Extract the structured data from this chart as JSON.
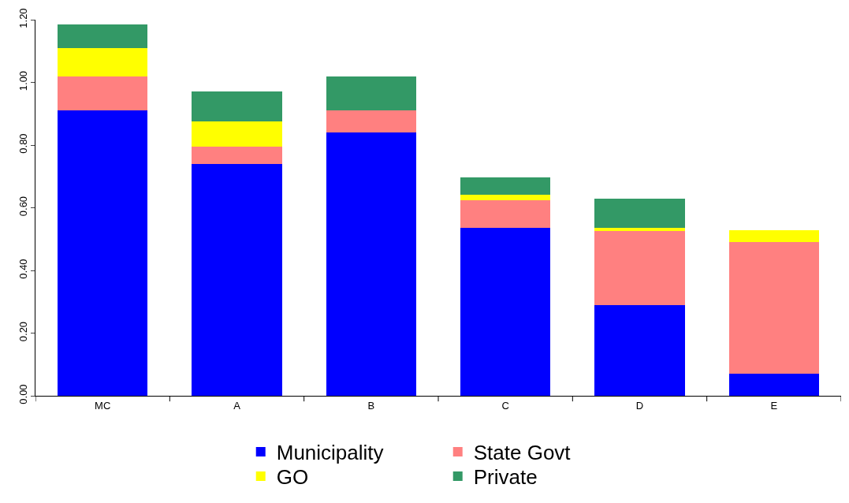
{
  "chart_data": {
    "type": "bar",
    "stacked": true,
    "categories": [
      "MC",
      "A",
      "B",
      "C",
      "D",
      "E"
    ],
    "series": [
      {
        "name": "Municipality",
        "color": "#0000ff",
        "values": [
          0.91,
          0.74,
          0.84,
          0.535,
          0.29,
          0.07
        ]
      },
      {
        "name": "State Govt",
        "color": "#ff8080",
        "values": [
          0.11,
          0.055,
          0.07,
          0.09,
          0.235,
          0.42
        ]
      },
      {
        "name": "GO",
        "color": "#ffff00",
        "values": [
          0.09,
          0.08,
          0.0,
          0.017,
          0.01,
          0.038
        ]
      },
      {
        "name": "Private",
        "color": "#339966",
        "values": [
          0.075,
          0.095,
          0.11,
          0.055,
          0.095,
          0.0
        ]
      }
    ],
    "ylim": [
      0,
      1.2
    ],
    "yticks": [
      {
        "value": 0,
        "label": "0.00"
      },
      {
        "value": 0.2,
        "label": "0.20"
      },
      {
        "value": 0.4,
        "label": "0.40"
      },
      {
        "value": 0.6,
        "label": "0.60"
      },
      {
        "value": 0.8,
        "label": "0.80"
      },
      {
        "value": 1.0,
        "label": "1.00"
      },
      {
        "value": 1.2,
        "label": "1.20"
      }
    ],
    "legend": "bottom"
  }
}
